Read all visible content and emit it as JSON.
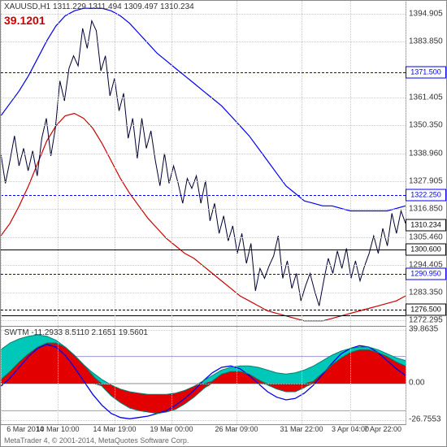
{
  "header": {
    "symbol_line": "XAUUSD,H1 1311.229 1311.494 1309.497 1310.234",
    "value_line": "39.1201"
  },
  "main": {
    "ylim": [
      1270,
      1400
    ],
    "yticks": [
      {
        "v": 1394.905,
        "lbl": "1394.905"
      },
      {
        "v": 1383.85,
        "lbl": "1383.850"
      },
      {
        "v": 1371.5,
        "lbl": "1371.500",
        "box": true,
        "color": "#0000ee"
      },
      {
        "v": 1361.405,
        "lbl": "1361.405"
      },
      {
        "v": 1350.35,
        "lbl": "1350.350"
      },
      {
        "v": 1338.96,
        "lbl": "1338.960"
      },
      {
        "v": 1327.905,
        "lbl": "1327.905"
      },
      {
        "v": 1322.25,
        "lbl": "1322.250",
        "box": true,
        "color": "#0000ee"
      },
      {
        "v": 1316.85,
        "lbl": "1316.850"
      },
      {
        "v": 1310.234,
        "lbl": "1310.234",
        "box": true,
        "color": "#000"
      },
      {
        "v": 1305.46,
        "lbl": "1305.460"
      },
      {
        "v": 1300.6,
        "lbl": "1300.600",
        "box": true,
        "color": "#000"
      },
      {
        "v": 1294.405,
        "lbl": "1294.405"
      },
      {
        "v": 1290.95,
        "lbl": "1290.950",
        "box": true,
        "color": "#0000ee"
      },
      {
        "v": 1283.35,
        "lbl": "1283.350"
      },
      {
        "v": 1276.5,
        "lbl": "1276.500",
        "box": true,
        "color": "#000"
      },
      {
        "v": 1272.295,
        "lbl": "1272.295"
      }
    ],
    "hlines": [
      {
        "v": 1371.5,
        "style": "dashed",
        "color": "#0000ee"
      },
      {
        "v": 1322.25,
        "style": "dashed",
        "color": "#0000ee"
      },
      {
        "v": 1300.6,
        "style": "solid",
        "color": "#000"
      },
      {
        "v": 1290.95,
        "style": "dashed",
        "color": "#0000ee"
      },
      {
        "v": 1276.5,
        "style": "dashed",
        "color": "#000"
      },
      {
        "v": 1274.3,
        "style": "solid",
        "color": "#000"
      }
    ],
    "price": [
      1339,
      1327,
      1336,
      1346,
      1334,
      1341,
      1332,
      1340,
      1330,
      1345,
      1353,
      1338,
      1349,
      1368,
      1360,
      1373,
      1378,
      1374,
      1389,
      1381,
      1392,
      1388,
      1372,
      1378,
      1362,
      1369,
      1356,
      1363,
      1345,
      1353,
      1337,
      1353,
      1341,
      1348,
      1336,
      1326,
      1339,
      1327,
      1334,
      1327,
      1319,
      1329,
      1325,
      1330,
      1319,
      1328,
      1312,
      1319,
      1307,
      1314,
      1304,
      1310,
      1299,
      1307,
      1295,
      1303,
      1284,
      1293,
      1289,
      1294,
      1298,
      1306,
      1289,
      1296,
      1285,
      1291,
      1280,
      1286,
      1291,
      1284,
      1278,
      1288,
      1297,
      1291,
      1300,
      1293,
      1301,
      1289,
      1296,
      1288,
      1294,
      1299,
      1306,
      1299,
      1309,
      1302,
      1315,
      1307,
      1316,
      1311
    ],
    "upper_band": [
      1354,
      1359,
      1364,
      1370,
      1377,
      1384,
      1390,
      1394,
      1396,
      1397,
      1397,
      1397,
      1396,
      1394,
      1391,
      1387,
      1383,
      1379,
      1376,
      1373,
      1370,
      1367,
      1364,
      1361,
      1358,
      1354,
      1350,
      1346,
      1341,
      1336,
      1331,
      1326,
      1323,
      1320,
      1319,
      1318,
      1318,
      1317,
      1316,
      1316,
      1316,
      1316,
      1316,
      1317,
      1318
    ],
    "lower_band": [
      1306,
      1311,
      1318,
      1326,
      1335,
      1344,
      1350,
      1354,
      1355,
      1353,
      1349,
      1343,
      1336,
      1329,
      1323,
      1318,
      1313,
      1309,
      1305,
      1302,
      1299,
      1297,
      1294,
      1291,
      1288,
      1285,
      1282,
      1280,
      1278,
      1276,
      1275,
      1274,
      1273,
      1272,
      1272,
      1272,
      1273,
      1274,
      1275,
      1276,
      1277,
      1278,
      1279,
      1280,
      1282
    ],
    "band_color_upper": "#0000ee",
    "band_color_lower": "#cc0000",
    "price_color": "#000033"
  },
  "indicator": {
    "title": "SWTM -11.2933 8.5110 2.1651 19.5601",
    "ylim": [
      -30,
      42
    ],
    "yticks": [
      {
        "v": 39.8635,
        "lbl": "39.8635"
      },
      {
        "v": 0,
        "lbl": "0.00"
      },
      {
        "v": -26.7553,
        "lbl": "-26.7553"
      }
    ],
    "cyan_upper": [
      25,
      30,
      33,
      35,
      36,
      35,
      32,
      27,
      21,
      14,
      8,
      3,
      -1,
      -4,
      -6,
      -7,
      -8,
      -8,
      -8,
      -7,
      -5,
      -2,
      2,
      6,
      10,
      12,
      13,
      13,
      12,
      10,
      8,
      7,
      8,
      10,
      13,
      17,
      21,
      24,
      26,
      27,
      27,
      25,
      22,
      19,
      17
    ],
    "cyan_lower": [
      3,
      9,
      16,
      22,
      27,
      30,
      30,
      27,
      21,
      14,
      6,
      -2,
      -9,
      -14,
      -18,
      -20,
      -21,
      -22,
      -21,
      -19,
      -15,
      -10,
      -4,
      2,
      7,
      9,
      9,
      7,
      3,
      -1,
      -4,
      -6,
      -6,
      -3,
      2,
      8,
      14,
      19,
      23,
      25,
      25,
      23,
      20,
      16,
      13
    ],
    "blue_line": [
      -2,
      4,
      12,
      20,
      26,
      29,
      27,
      21,
      12,
      2,
      -8,
      -16,
      -22,
      -25,
      -26,
      -25,
      -24,
      -22,
      -20,
      -16,
      -11,
      -5,
      2,
      8,
      12,
      13,
      11,
      6,
      0,
      -6,
      -10,
      -12,
      -11,
      -7,
      -1,
      7,
      15,
      22,
      26,
      28,
      27,
      23,
      17,
      11,
      6
    ],
    "cyan": "#00c8b8",
    "red": "#e20000",
    "blue": "#0000ee",
    "band": "#9999cc"
  },
  "xaxis": {
    "labels": [
      "6 Mar 2014",
      "10 Mar 10:00",
      "14 Mar 19:00",
      "19 Mar 00:00",
      "26 Mar 09:00",
      "31 Mar 22:00",
      "3 Apr 04:00",
      "7 Apr 22:00"
    ],
    "positions": [
      0,
      70,
      140,
      210,
      290,
      370,
      430,
      498
    ]
  },
  "copyright": "MetaTrader 4, © 2001-2014, MetaQuotes Software Corp."
}
